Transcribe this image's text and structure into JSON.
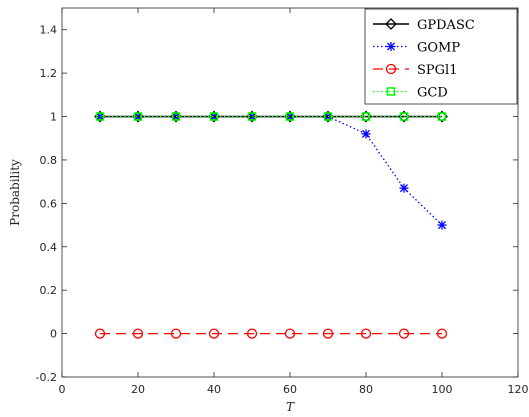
{
  "chart_data": {
    "type": "line",
    "title": "",
    "xlabel": "T",
    "ylabel": "Probability",
    "xlim": [
      0,
      120
    ],
    "ylim": [
      -0.2,
      1.5
    ],
    "xticks": [
      0,
      20,
      40,
      60,
      80,
      100,
      120
    ],
    "yticks": [
      -0.2,
      0,
      0.2,
      0.4,
      0.6,
      0.8,
      1,
      1.2,
      1.4
    ],
    "x": [
      10,
      20,
      30,
      40,
      50,
      60,
      70,
      80,
      90,
      100
    ],
    "grid": false,
    "legend_position": "top-right",
    "series": [
      {
        "name": "GPDASC",
        "values": [
          1,
          1,
          1,
          1,
          1,
          1,
          1,
          1,
          1,
          1
        ],
        "color": "#000000",
        "line": "solid",
        "marker": "diamond"
      },
      {
        "name": "GOMP",
        "values": [
          1,
          1,
          1,
          1,
          1,
          1,
          1,
          0.92,
          0.67,
          0.5
        ],
        "color": "#0000ff",
        "line": "dotted",
        "marker": "asterisk"
      },
      {
        "name": "SPGl1",
        "values": [
          0,
          0,
          0,
          0,
          0,
          0,
          0,
          0,
          0,
          0
        ],
        "color": "#ff0000",
        "line": "dashed",
        "marker": "circle"
      },
      {
        "name": "GCD",
        "values": [
          1,
          1,
          1,
          1,
          1,
          1,
          1,
          1,
          1,
          1
        ],
        "color": "#00ff00",
        "line": "dotted",
        "marker": "square"
      }
    ]
  }
}
